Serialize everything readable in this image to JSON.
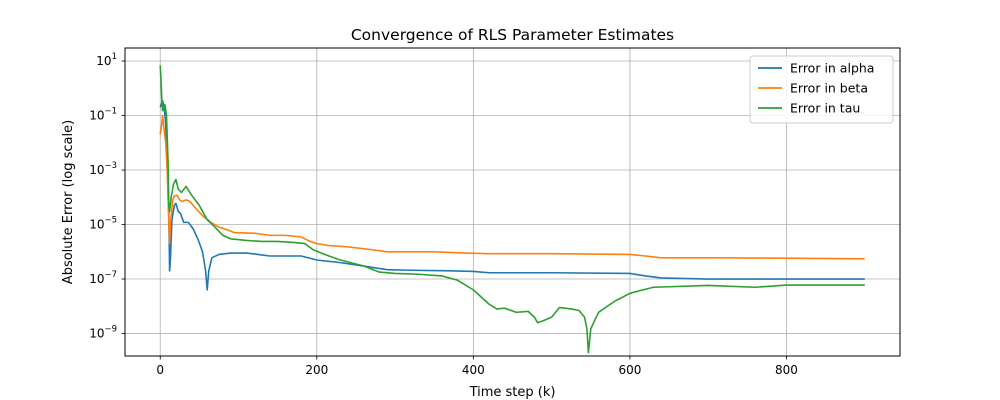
{
  "chart_data": {
    "type": "line",
    "title": "Convergence of RLS Parameter Estimates",
    "xlabel": "Time step (k)",
    "ylabel": "Absolute Error (log scale)",
    "yscale": "log",
    "xlim": [
      -45,
      945
    ],
    "ylim": [
      1.5e-10,
      30
    ],
    "grid": true,
    "legend_position": "top-right",
    "x_ticks": [
      {
        "value": 0,
        "label": "0"
      },
      {
        "value": 200,
        "label": "200"
      },
      {
        "value": 400,
        "label": "400"
      },
      {
        "value": 600,
        "label": "600"
      },
      {
        "value": 800,
        "label": "800"
      }
    ],
    "y_ticks": [
      {
        "value": 10,
        "base": "10",
        "exp": "1"
      },
      {
        "value": 0.1,
        "base": "10",
        "exp": "−1"
      },
      {
        "value": 0.001,
        "base": "10",
        "exp": "−3"
      },
      {
        "value": 1e-05,
        "base": "10",
        "exp": "−5"
      },
      {
        "value": 1e-07,
        "base": "10",
        "exp": "−7"
      },
      {
        "value": 1e-09,
        "base": "10",
        "exp": "−9"
      }
    ],
    "series": [
      {
        "name": "Error in alpha",
        "color": "#1f77b4",
        "points": [
          [
            0,
            0.2
          ],
          [
            3,
            0.35
          ],
          [
            5,
            0.2
          ],
          [
            7,
            0.05
          ],
          [
            9,
            0.001
          ],
          [
            11,
            2e-05
          ],
          [
            12,
            2e-07
          ],
          [
            13,
            5e-07
          ],
          [
            15,
            1.5e-05
          ],
          [
            18,
            5e-05
          ],
          [
            20,
            6e-05
          ],
          [
            23,
            3e-05
          ],
          [
            26,
            2.5e-05
          ],
          [
            30,
            1.2e-05
          ],
          [
            36,
            1.2e-05
          ],
          [
            42,
            7e-06
          ],
          [
            48,
            3e-06
          ],
          [
            54,
            1e-06
          ],
          [
            58,
            2e-07
          ],
          [
            60,
            4e-08
          ],
          [
            62,
            2e-07
          ],
          [
            66,
            6e-07
          ],
          [
            75,
            8e-07
          ],
          [
            90,
            9e-07
          ],
          [
            110,
            9e-07
          ],
          [
            125,
            8e-07
          ],
          [
            140,
            7e-07
          ],
          [
            160,
            7e-07
          ],
          [
            180,
            7e-07
          ],
          [
            200,
            5e-07
          ],
          [
            230,
            4e-07
          ],
          [
            260,
            3e-07
          ],
          [
            290,
            2.2e-07
          ],
          [
            320,
            2.1e-07
          ],
          [
            370,
            2e-07
          ],
          [
            400,
            1.9e-07
          ],
          [
            420,
            1.7e-07
          ],
          [
            500,
            1.7e-07
          ],
          [
            600,
            1.6e-07
          ],
          [
            620,
            1.3e-07
          ],
          [
            640,
            1.1e-07
          ],
          [
            700,
            1e-07
          ],
          [
            800,
            1e-07
          ],
          [
            900,
            1e-07
          ]
        ]
      },
      {
        "name": "Error in beta",
        "color": "#ff7f0e",
        "points": [
          [
            0,
            0.02
          ],
          [
            2,
            0.05
          ],
          [
            3,
            0.1
          ],
          [
            5,
            0.03
          ],
          [
            7,
            0.01
          ],
          [
            9,
            0.001
          ],
          [
            11,
            1e-05
          ],
          [
            12,
            2e-06
          ],
          [
            13,
            1e-05
          ],
          [
            16,
            8e-05
          ],
          [
            18,
            0.00011
          ],
          [
            21,
            0.00012
          ],
          [
            25,
            8e-05
          ],
          [
            28,
            7e-05
          ],
          [
            33,
            8e-05
          ],
          [
            38,
            7e-05
          ],
          [
            45,
            4e-05
          ],
          [
            55,
            2e-05
          ],
          [
            65,
            1.2e-05
          ],
          [
            75,
            8e-06
          ],
          [
            85,
            6.5e-06
          ],
          [
            95,
            5e-06
          ],
          [
            120,
            4.8e-06
          ],
          [
            140,
            4e-06
          ],
          [
            160,
            4e-06
          ],
          [
            180,
            3.5e-06
          ],
          [
            190,
            2.5e-06
          ],
          [
            200,
            2e-06
          ],
          [
            215,
            1.7e-06
          ],
          [
            240,
            1.5e-06
          ],
          [
            270,
            1.2e-06
          ],
          [
            290,
            1e-06
          ],
          [
            350,
            1e-06
          ],
          [
            390,
            9e-07
          ],
          [
            420,
            8.5e-07
          ],
          [
            500,
            8.5e-07
          ],
          [
            600,
            8e-07
          ],
          [
            620,
            7e-07
          ],
          [
            640,
            6e-07
          ],
          [
            700,
            6e-07
          ],
          [
            800,
            5.8e-07
          ],
          [
            900,
            5.5e-07
          ]
        ]
      },
      {
        "name": "Error in tau",
        "color": "#2ca02c",
        "points": [
          [
            0,
            7
          ],
          [
            1,
            2
          ],
          [
            2,
            0.4
          ],
          [
            3,
            0.15
          ],
          [
            5,
            0.2
          ],
          [
            6,
            0.25
          ],
          [
            8,
            0.1
          ],
          [
            10,
            0.002
          ],
          [
            11,
            5e-05
          ],
          [
            12,
            3e-05
          ],
          [
            14,
            0.0001
          ],
          [
            17,
            0.0003
          ],
          [
            20,
            0.00045
          ],
          [
            23,
            0.0002
          ],
          [
            27,
            0.00015
          ],
          [
            33,
            0.00025
          ],
          [
            40,
            0.00012
          ],
          [
            50,
            5e-05
          ],
          [
            60,
            1.5e-05
          ],
          [
            70,
            8e-06
          ],
          [
            80,
            4e-06
          ],
          [
            90,
            3e-06
          ],
          [
            110,
            2.6e-06
          ],
          [
            130,
            2.4e-06
          ],
          [
            150,
            2.4e-06
          ],
          [
            170,
            2.2e-06
          ],
          [
            185,
            2e-06
          ],
          [
            195,
            1.2e-06
          ],
          [
            210,
            8e-07
          ],
          [
            230,
            5e-07
          ],
          [
            260,
            3e-07
          ],
          [
            280,
            1.8e-07
          ],
          [
            300,
            1.6e-07
          ],
          [
            330,
            1.5e-07
          ],
          [
            360,
            1.3e-07
          ],
          [
            380,
            9e-08
          ],
          [
            400,
            4e-08
          ],
          [
            420,
            1.2e-08
          ],
          [
            430,
            8e-09
          ],
          [
            440,
            8.5e-09
          ],
          [
            455,
            6e-09
          ],
          [
            470,
            6.5e-09
          ],
          [
            478,
            4e-09
          ],
          [
            482,
            2.5e-09
          ],
          [
            490,
            3e-09
          ],
          [
            500,
            4e-09
          ],
          [
            510,
            9e-09
          ],
          [
            525,
            8e-09
          ],
          [
            535,
            7e-09
          ],
          [
            542,
            4e-09
          ],
          [
            545,
            1.5e-09
          ],
          [
            547,
            2e-10
          ],
          [
            550,
            1.5e-09
          ],
          [
            560,
            6e-09
          ],
          [
            580,
            1.5e-08
          ],
          [
            600,
            3e-08
          ],
          [
            630,
            5e-08
          ],
          [
            700,
            5.8e-08
          ],
          [
            760,
            5e-08
          ],
          [
            800,
            6e-08
          ],
          [
            860,
            6e-08
          ],
          [
            900,
            6e-08
          ]
        ]
      }
    ]
  }
}
